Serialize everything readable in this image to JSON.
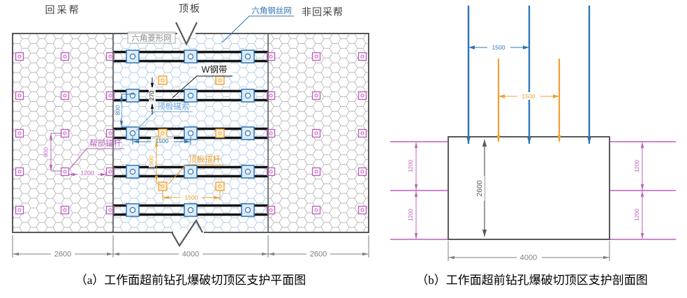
{
  "panel_a": {
    "caption": "（a）工作面超前钻孔爆破切顶区支护平面图",
    "labels": {
      "left_wall": "回采帮",
      "roof": "顶板",
      "wire_mesh": "六角钢丝网",
      "right_wall": "非回采帮",
      "diamond_mesh": "六角菱形网",
      "steel_band": "W钢带",
      "roof_cable": "顶板锚索",
      "side_bolt": "帮部锚杆",
      "roof_bolt": "顶板锚杆"
    },
    "dims": {
      "band_width": "270",
      "cable_row_spacing": "800",
      "cable_col_spacing": "1500",
      "roof_bolt_row_spacing": "900",
      "roof_bolt_col_spacing": "1500",
      "side_bolt_row_spacing": "900",
      "side_bolt_col_spacing": "1200",
      "bottom_left": "2600",
      "bottom_middle": "4000",
      "bottom_right": "2600"
    }
  },
  "panel_b": {
    "caption": "（b）工作面超前钻孔爆破切顶区支护剖面图",
    "dims": {
      "cable_spacing": "1500",
      "bolt_spacing": "1500",
      "section_height": "2600",
      "section_width": "4000",
      "side_row_spacing": "1200"
    }
  },
  "colors": {
    "blue": "#2e75b6",
    "cable_label_blue": "#6fa8dc",
    "orange": "#eda030",
    "magenta": "#bb5fbb",
    "border_gray": "#595959",
    "dim_gray": "#7f7f7f",
    "band_black": "#141414",
    "mesh_gray": "#b8b8b8",
    "mesh_blue": "#b0cce8"
  }
}
